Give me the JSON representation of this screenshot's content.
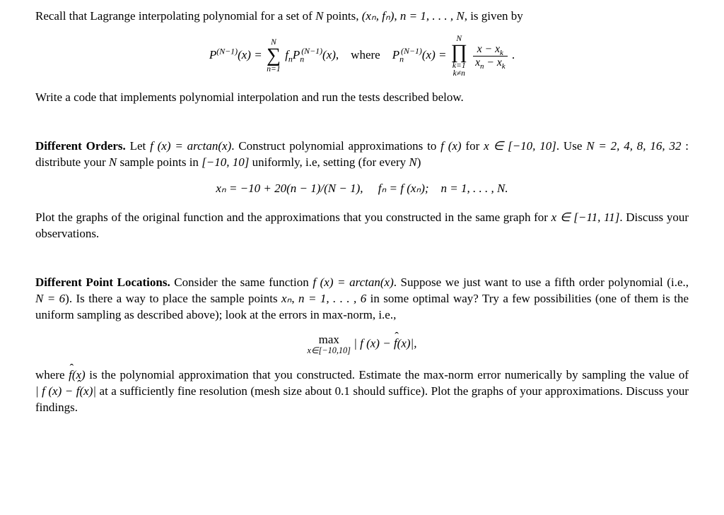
{
  "intro": {
    "line1_a": "Recall that Lagrange interpolating polynomial for a set of ",
    "line1_b": " points, ",
    "line1_c": ", is given by",
    "N": "N",
    "pair": "(xₙ, fₙ)",
    "range": "n = 1, . . . , N",
    "eq_where": ", where ",
    "eq_end": " .",
    "sum_top": "N",
    "sum_bot": "n=1",
    "prod_top": "N",
    "prod_bot1": "k=1",
    "prod_bot2": "k≠n",
    "frac_num": "x − x",
    "frac_num_sub": "k",
    "frac_den_a": "x",
    "frac_den_asub": "n",
    "frac_den_b": " − x",
    "frac_den_bsub": "k",
    "after": "Write a code that implements polynomial interpolation and run the tests described below."
  },
  "orders": {
    "heading": "Different Orders.",
    "body1_a": " Let ",
    "body1_fx": "f (x) = arctan(x)",
    "body1_b": ". Construct polynomial approximations to ",
    "body1_c": " for ",
    "body1_dom": "x ∈ [−10, 10]",
    "body1_d": ". Use ",
    "body1_N": "N = 2, 4, 8, 16, 32",
    "body1_e": " : distribute your ",
    "body1_f": " sample points in ",
    "body1_int": "[−10, 10]",
    "body1_g": " uniformly, i.e, setting (for every ",
    "body1_h": ")",
    "eq": "xₙ = −10 + 20(n − 1)/(N − 1),  fₙ = f (xₙ); n = 1, . . . , N.",
    "body2_a": "Plot the graphs of the original function and the approximations that you constructed in the same graph for ",
    "body2_dom": "x ∈ [−11, 11]",
    "body2_b": ". Discuss your observations."
  },
  "points": {
    "heading": "Different Point Locations.",
    "body1_a": " Consider the same function ",
    "body1_fx": "f (x) = arctan(x)",
    "body1_b": ". Suppose we just want to use a fifth order polynomial (i.e., ",
    "body1_N6": "N = 6",
    "body1_c": "). Is there a way to place the sample points ",
    "body1_xn": "xₙ",
    "body1_d": ", ",
    "body1_range": "n = 1, . . . , 6",
    "body1_e": " in some optimal way? Try a few possibilities (one of them is the uniform sampling as described above); look at the errors in max-norm, i.e.,",
    "max_op": "max",
    "max_dom": "x∈[−10,10]",
    "max_arg_a": " | f (x) − ",
    "max_arg_b": "(x)|,",
    "body2_a": "where ",
    "body2_b": " is the polynomial approximation that you constructed. Estimate the max-norm error numerically by sampling the value of ",
    "body2_mid": "| f (x) − ",
    "body2_mid2": "(x)|",
    "body2_c": " at a sufficiently fine resolution (mesh size about 0.1 should suffice). Plot the graphs of your approximations. Discuss your findings."
  },
  "sym": {
    "fx": "f (x)",
    "fhat": "f",
    "N": "N"
  }
}
